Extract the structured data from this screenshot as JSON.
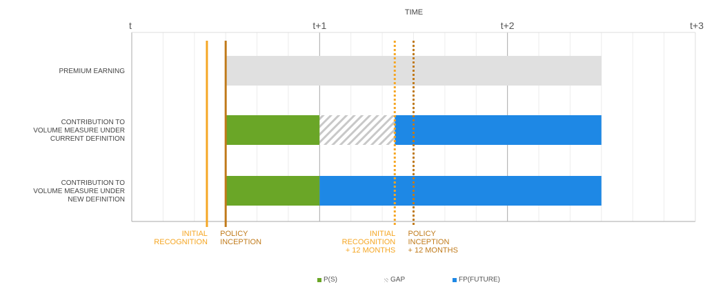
{
  "chart_data": {
    "type": "bar",
    "title": "TIME",
    "x_ticks": [
      "t",
      "t+1",
      "t+2",
      "t+3"
    ],
    "xlim": [
      0,
      3
    ],
    "grid": true,
    "rows": [
      {
        "label": "PREMIUM EARNING",
        "segments": [
          {
            "start": 0.5,
            "end": 2.5,
            "color": "#e0e0e0",
            "pattern": "solid"
          }
        ]
      },
      {
        "label": "CONTRIBUTION TO VOLUME MEASURE UNDER CURRENT DEFINITION",
        "label_lines": [
          "CONTRIBUTION TO",
          "VOLUME MEASURE UNDER",
          "CURRENT DEFINITION"
        ],
        "segments": [
          {
            "start": 0.5,
            "end": 1.0,
            "color": "#6aa627",
            "pattern": "solid"
          },
          {
            "start": 1.0,
            "end": 1.4,
            "color": "#cccccc",
            "pattern": "hatch"
          },
          {
            "start": 1.4,
            "end": 2.5,
            "color": "#1e88e5",
            "pattern": "solid"
          }
        ]
      },
      {
        "label": "CONTRIBUTION TO VOLUME MEASURE UNDER NEW DEFINITION",
        "label_lines": [
          "CONTRIBUTION TO",
          "VOLUME MEASURE UNDER",
          "NEW DEFINITION"
        ],
        "segments": [
          {
            "start": 0.5,
            "end": 1.0,
            "color": "#6aa627",
            "pattern": "solid"
          },
          {
            "start": 1.0,
            "end": 2.5,
            "color": "#1e88e5",
            "pattern": "solid"
          }
        ]
      }
    ],
    "markers": [
      {
        "x": 0.4,
        "color": "#f5a623",
        "style": "solid",
        "label_lines": [
          "INITIAL",
          "RECOGNITION"
        ],
        "align": "end"
      },
      {
        "x": 0.5,
        "color": "#c07a1a",
        "style": "solid",
        "label_lines": [
          "POLICY",
          "INCEPTION"
        ],
        "align": "start"
      },
      {
        "x": 1.4,
        "color": "#f5a623",
        "style": "dotted",
        "label_lines": [
          "INITIAL",
          "RECOGNITION",
          "+ 12 MONTHS"
        ],
        "align": "end"
      },
      {
        "x": 1.5,
        "color": "#c07a1a",
        "style": "dotted",
        "label_lines": [
          "POLICY",
          "INCEPTION",
          "+ 12 MONTHS"
        ],
        "align": "start"
      }
    ],
    "legend": [
      {
        "name": "P(S)",
        "color": "#6aa627",
        "pattern": "solid"
      },
      {
        "name": "GAP",
        "color": "#bdbdbd",
        "pattern": "hatch"
      },
      {
        "name": "FP(FUTURE)",
        "color": "#1e88e5",
        "pattern": "solid"
      }
    ],
    "legend_position": "bottom"
  }
}
